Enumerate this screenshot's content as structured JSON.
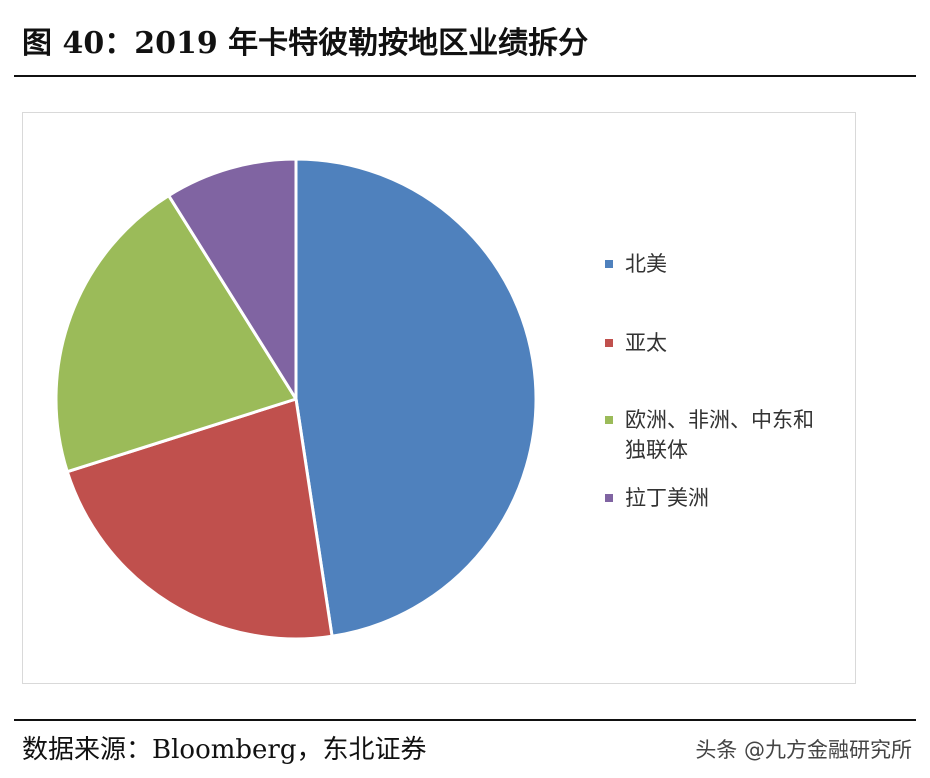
{
  "header": {
    "title": "图 40：2019 年卡特彼勒按地区业绩拆分"
  },
  "footer": {
    "source": "数据来源：Bloomberg，东北证券",
    "watermark": "头条 @九方金融研究所"
  },
  "chart_data": {
    "type": "pie",
    "title": "图 40：2019 年卡特彼勒按地区业绩拆分",
    "categories": [
      "北美",
      "亚太",
      "欧洲、非洲、中东和独联体",
      "拉丁美洲"
    ],
    "values": [
      47.6,
      22.5,
      21.0,
      8.9
    ],
    "colors": [
      "#4F81BD",
      "#C0504D",
      "#9BBB59",
      "#8064A2"
    ],
    "start_angle_deg": 0,
    "direction": "clockwise",
    "legend_position": "right",
    "data_labels": false
  }
}
